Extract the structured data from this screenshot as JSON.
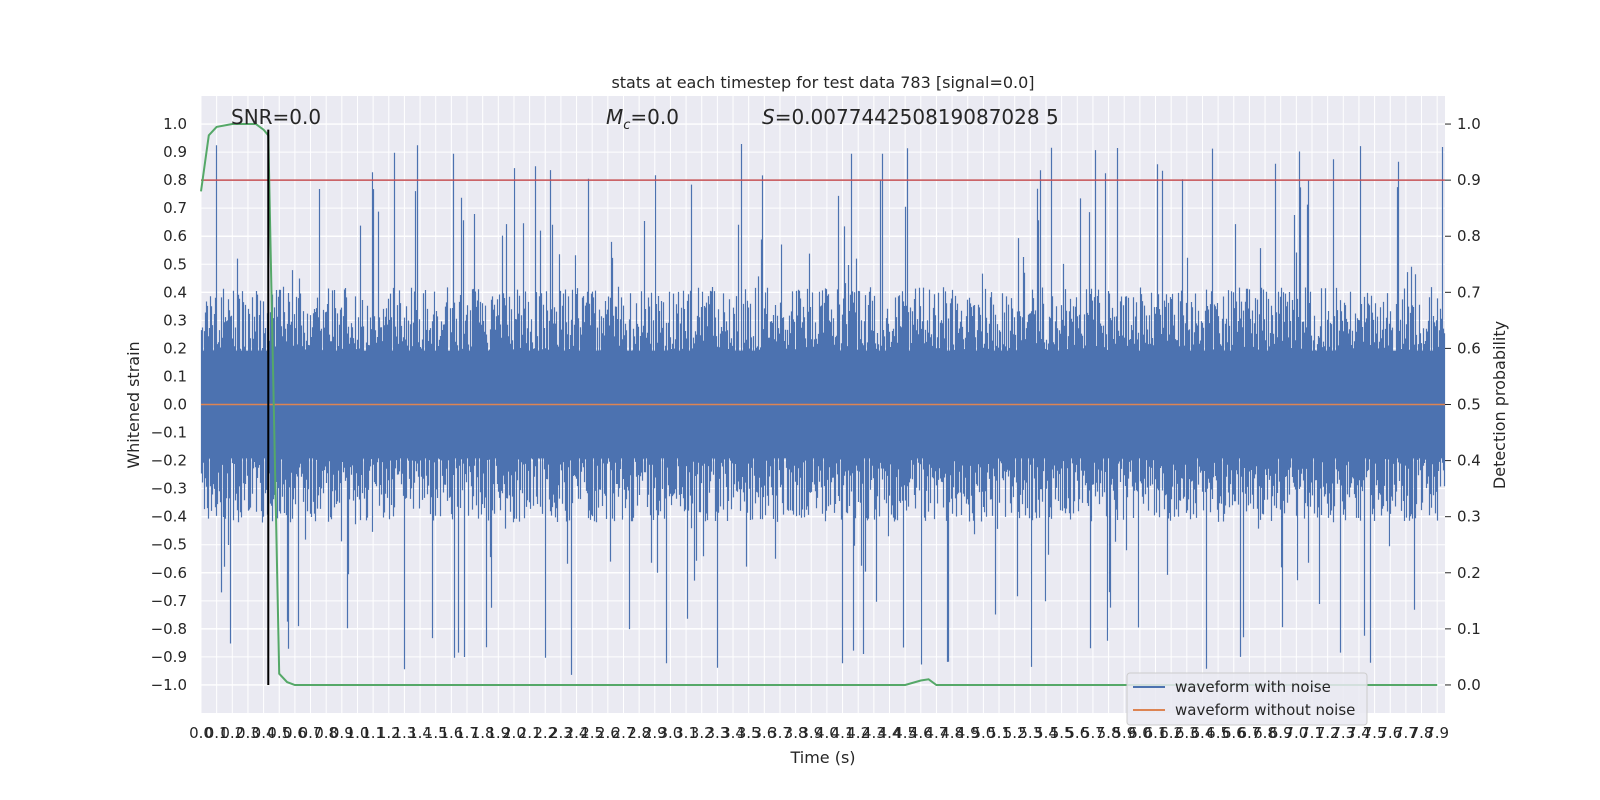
{
  "chart_data": {
    "type": "line",
    "title": "stats at each timestep for test data 783 [signal=0.0]",
    "xlabel": "Time (s)",
    "ylabel_left": "Whitened strain",
    "ylabel_right": "Detection probability",
    "xlim": [
      0.0,
      7.95
    ],
    "ylim_left": [
      -1.1,
      1.1
    ],
    "ylim_right": [
      -0.05,
      1.05
    ],
    "x_ticks": [
      "0.0",
      "0.1",
      "0.2",
      "0.3",
      "0.4",
      "0.5",
      "0.6",
      "0.7",
      "0.8",
      "0.9",
      "1.0",
      "1.1",
      "1.2",
      "1.3",
      "1.4",
      "1.5",
      "1.6",
      "1.7",
      "1.8",
      "1.9",
      "2.0",
      "2.1",
      "2.2",
      "2.3",
      "2.4",
      "2.5",
      "2.6",
      "2.7",
      "2.8",
      "2.9",
      "3.0",
      "3.1",
      "3.2",
      "3.3",
      "3.4",
      "3.5",
      "3.6",
      "3.7",
      "3.8",
      "3.9",
      "4.0",
      "4.1",
      "4.2",
      "4.3",
      "4.4",
      "4.5",
      "4.6",
      "4.7",
      "4.8",
      "4.9",
      "5.0",
      "5.1",
      "5.2",
      "5.3",
      "5.4",
      "5.5",
      "5.6",
      "5.7",
      "5.8",
      "5.9",
      "6.0",
      "6.1",
      "6.2",
      "6.3",
      "6.4",
      "6.5",
      "6.6",
      "6.7",
      "6.8",
      "6.9",
      "7.0",
      "7.1",
      "7.2",
      "7.3",
      "7.4",
      "7.5",
      "7.6",
      "7.7",
      "7.8",
      "7.9"
    ],
    "y_ticks_left": [
      "1.0",
      "0.9",
      "0.8",
      "0.7",
      "0.6",
      "0.5",
      "0.4",
      "0.3",
      "0.2",
      "0.1",
      "0.0",
      "-0.1",
      "-0.2",
      "-0.3",
      "-0.4",
      "-0.5",
      "-0.6",
      "-0.7",
      "-0.8",
      "-0.9",
      "-1.0"
    ],
    "y_ticks_right": [
      "1.0",
      "0.9",
      "0.8",
      "0.7",
      "0.6",
      "0.5",
      "0.4",
      "0.3",
      "0.2",
      "0.1",
      "0.0"
    ],
    "annotations": {
      "snr": "SNR=0.0",
      "mc": "=0.0",
      "mc_symbol": "M",
      "mc_sub": "c",
      "s": "=0.007744250819087028 5",
      "s_symbol": "S"
    },
    "legend": {
      "position": "lower right",
      "entries": [
        {
          "label": "waveform with noise",
          "color": "#4c72b0"
        },
        {
          "label": "waveform without noise",
          "color": "#dd8452"
        }
      ]
    },
    "series": [
      {
        "name": "waveform with noise",
        "color": "#4c72b0",
        "axis": "left",
        "kind": "noise-band",
        "typical_amplitude": 0.4,
        "max_peak": 0.93,
        "min_peak": -0.98
      },
      {
        "name": "waveform without noise",
        "color": "#dd8452",
        "axis": "left",
        "x": [
          0.0,
          7.95
        ],
        "y": [
          0.0,
          0.0
        ]
      },
      {
        "color": "#55a868",
        "axis": "right",
        "x": [
          0.0,
          0.05,
          0.1,
          0.2,
          0.3,
          0.35,
          0.4,
          0.43,
          0.5,
          0.55,
          0.6,
          4.5,
          4.6,
          4.65,
          4.7,
          7.9
        ],
        "y": [
          0.88,
          0.98,
          0.995,
          1.0,
          1.0,
          1.0,
          0.99,
          0.98,
          0.02,
          0.005,
          0.0,
          0.0,
          0.008,
          0.01,
          0.0,
          0.0
        ]
      },
      {
        "color": "#c44e52",
        "axis": "right",
        "x": [
          0.0,
          7.95
        ],
        "y": [
          0.9,
          0.9
        ]
      }
    ],
    "vertical_line": {
      "x": 0.43,
      "color": "#000000"
    },
    "grid": true,
    "colors": {
      "axes_bg": "#eaeaf2",
      "grid": "#ffffff"
    }
  }
}
